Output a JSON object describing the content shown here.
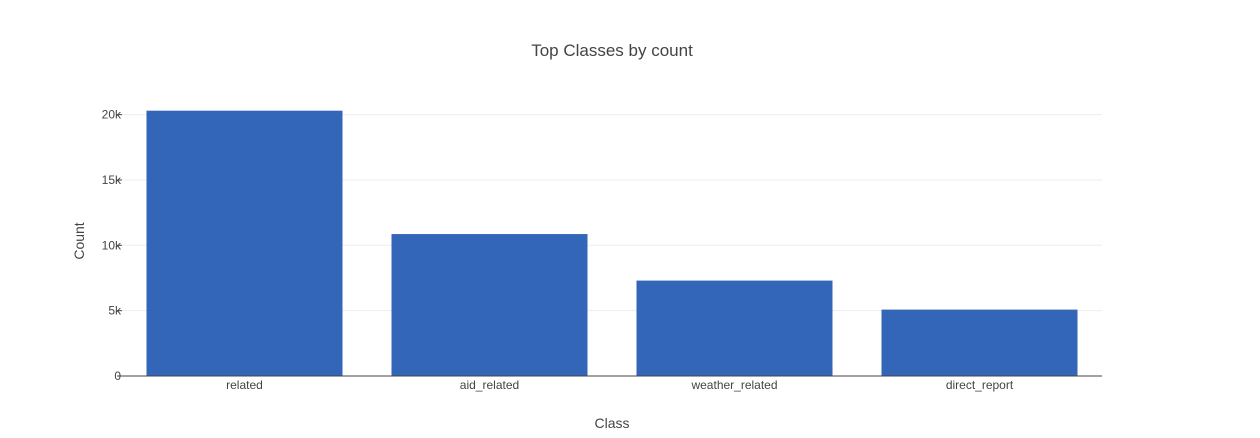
{
  "chart_data": {
    "type": "bar",
    "title": "Top Classes by count",
    "xlabel": "Class",
    "ylabel": "Count",
    "categories": [
      "related",
      "aid_related",
      "weather_related",
      "direct_report"
    ],
    "values": [
      20300,
      10860,
      7300,
      5080
    ],
    "ylim": [
      0,
      21500
    ],
    "yticks": [
      0,
      5000,
      10000,
      15000,
      20000
    ],
    "ytick_labels": [
      "0",
      "5k",
      "10k",
      "15k",
      "20k"
    ],
    "grid": true,
    "bar_color": "#3366b8",
    "grid_color": "#eeeeee",
    "axis_color": "#444444"
  }
}
